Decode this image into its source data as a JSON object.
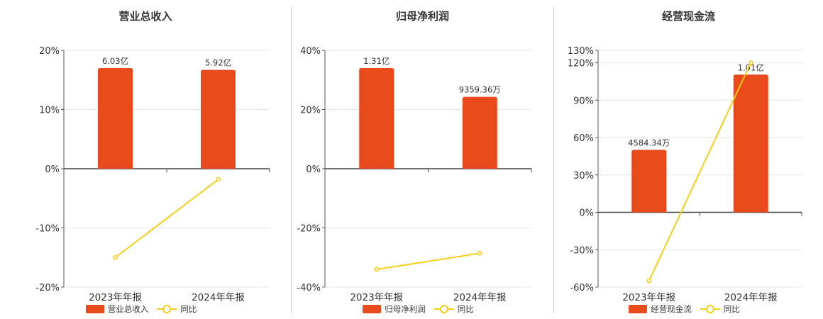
{
  "colors": {
    "bar": "#e84a1b",
    "line": "#f5cf1a",
    "grid": "#e3e6ee",
    "axis": "#555555"
  },
  "chart_data": [
    {
      "type": "bar",
      "title": "营业总收入",
      "categories": [
        "2023年年报",
        "2024年年报"
      ],
      "series": [
        {
          "name": "营业总收入",
          "type": "bar",
          "values": [
            6.03,
            5.92
          ],
          "labels": [
            "6.03亿",
            "5.92亿"
          ],
          "unit": "亿"
        },
        {
          "name": "同比",
          "type": "line",
          "values": [
            -15.0,
            -1.8
          ],
          "unit": "%"
        }
      ],
      "yticks": [
        "20%",
        "10%",
        "0%",
        "-10%",
        "-20%"
      ],
      "ylim": [
        -20,
        20
      ]
    },
    {
      "type": "bar",
      "title": "归母净利润",
      "categories": [
        "2023年年报",
        "2024年年报"
      ],
      "series": [
        {
          "name": "归母净利润",
          "type": "bar",
          "values": [
            1.31,
            0.935936
          ],
          "labels": [
            "1.31亿",
            "9359.36万"
          ],
          "unit": "亿"
        },
        {
          "name": "同比",
          "type": "line",
          "values": [
            -34.0,
            -28.6
          ],
          "unit": "%"
        }
      ],
      "yticks": [
        "40%",
        "20%",
        "0%",
        "-20%",
        "-40%"
      ],
      "ylim": [
        -40,
        40
      ]
    },
    {
      "type": "bar",
      "title": "经营现金流",
      "categories": [
        "2023年年报",
        "2024年年报"
      ],
      "series": [
        {
          "name": "经营现金流",
          "type": "bar",
          "values": [
            0.458434,
            1.01
          ],
          "labels": [
            "4584.34万",
            "1.01亿"
          ],
          "unit": "亿"
        },
        {
          "name": "同比",
          "type": "line",
          "values": [
            -55.0,
            120.0
          ],
          "unit": "%"
        }
      ],
      "yticks": [
        "130%",
        "120%",
        "90%",
        "60%",
        "30%",
        "0%",
        "-30%",
        "-60%"
      ],
      "ylim": [
        -60,
        130
      ]
    }
  ]
}
